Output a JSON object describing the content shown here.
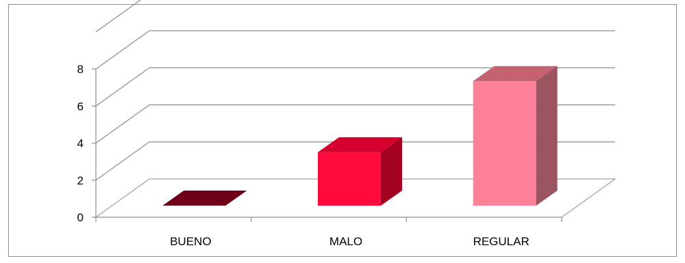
{
  "chart_data": {
    "type": "bar",
    "categories": [
      "BUENO",
      "MALO",
      "REGULAR"
    ],
    "values": [
      0,
      3,
      7
    ],
    "ylim": [
      0,
      8
    ],
    "yticks": [
      0,
      2,
      4,
      6,
      8
    ],
    "grid": true,
    "legend": "none",
    "colors": {
      "BUENO": {
        "front": "#8a001c",
        "top": "#6d0016",
        "side": "#5a0012"
      },
      "MALO": {
        "front": "#ff0a3c",
        "top": "#d6002e",
        "side": "#a30022"
      },
      "REGULAR": {
        "front": "#ff8099",
        "top": "#c4626f",
        "side": "#9c5560"
      }
    }
  }
}
